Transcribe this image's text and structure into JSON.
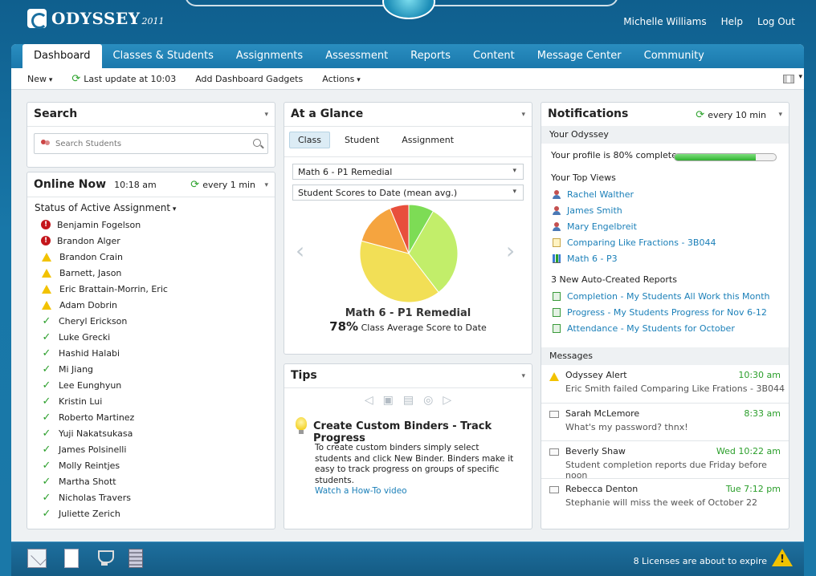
{
  "app": {
    "logo": "ODYSSEY",
    "year": "2011"
  },
  "top_links": {
    "user": "Michelle Williams",
    "help": "Help",
    "logout": "Log Out"
  },
  "tabs": [
    "Dashboard",
    "Classes & Students",
    "Assignments",
    "Assessment",
    "Reports",
    "Content",
    "Message Center",
    "Community"
  ],
  "toolbar": {
    "new": "New",
    "last_update": "Last update at 10:03",
    "add_gadgets": "Add Dashboard Gadgets",
    "actions": "Actions"
  },
  "search": {
    "title": "Search",
    "placeholder": "Search Students"
  },
  "online": {
    "title": "Online Now",
    "time": "10:18 am",
    "refresh": "every 1 min",
    "status_title": "Status of Active Assignment",
    "students": [
      {
        "name": "Benjamin Fogelson",
        "status": "error"
      },
      {
        "name": "Brandon Alger",
        "status": "error"
      },
      {
        "name": "Brandon Crain",
        "status": "warning"
      },
      {
        "name": "Barnett, Jason",
        "status": "warning"
      },
      {
        "name": "Eric Brattain-Morrin, Eric",
        "status": "warning"
      },
      {
        "name": "Adam Dobrin",
        "status": "warning"
      },
      {
        "name": "Cheryl Erickson",
        "status": "ok"
      },
      {
        "name": "Luke Grecki",
        "status": "ok"
      },
      {
        "name": "Hashid Halabi",
        "status": "ok"
      },
      {
        "name": "Mi Jiang",
        "status": "ok"
      },
      {
        "name": "Lee Eunghyun",
        "status": "ok"
      },
      {
        "name": "Kristin Lui",
        "status": "ok"
      },
      {
        "name": "Roberto Martinez",
        "status": "ok"
      },
      {
        "name": "Yuji Nakatsukasa",
        "status": "ok"
      },
      {
        "name": "James Polsinelli",
        "status": "ok"
      },
      {
        "name": "Molly Reintjes",
        "status": "ok"
      },
      {
        "name": "Martha Shott",
        "status": "ok"
      },
      {
        "name": "Nicholas Travers",
        "status": "ok"
      },
      {
        "name": "Juliette Zerich",
        "status": "ok"
      }
    ]
  },
  "glance": {
    "title": "At a Glance",
    "subtabs": [
      "Class",
      "Student",
      "Assignment"
    ],
    "class_select": "Math 6 - P1 Remedial",
    "metric_select": "Student Scores to Date (mean avg.)",
    "caption": "Math 6 - P1 Remedial",
    "avg_value": "78%",
    "avg_label": "Class Average Score to Date",
    "colors": [
      "#7ddc55",
      "#c2ee6a",
      "#f2df56",
      "#f5a43f",
      "#e84f3c"
    ]
  },
  "chart_data": {
    "type": "pie",
    "values": [
      8,
      30,
      38,
      14,
      6
    ],
    "colors": [
      "#7ddc55",
      "#c2ee6a",
      "#f2df56",
      "#f5a43f",
      "#e84f3c"
    ]
  },
  "tips": {
    "title": "Tips",
    "tip_title": "Create Custom Binders - Track Progress",
    "tip_body": "To create custom binders simply select students and click New Binder. Binders make it easy to track progress on groups of specific students.",
    "tip_link": "Watch a How-To video"
  },
  "notifications": {
    "title": "Notifications",
    "refresh": "every 10 min",
    "your_odyssey": "Your Odyssey",
    "profile_text": "Your profile is 80% complete",
    "profile_progress": 0.8,
    "top_views_label": "Your Top Views",
    "top_views": [
      {
        "label": "Rachel Walther",
        "icon": "person-icon"
      },
      {
        "label": "James Smith",
        "icon": "person-icon"
      },
      {
        "label": "Mary Engelbreit",
        "icon": "person-icon"
      },
      {
        "label": "Comparing Like Fractions - 3B044",
        "icon": "doc-icon"
      },
      {
        "label": "Math 6 - P3",
        "icon": "barchart-icon"
      }
    ],
    "reports_label": "3 New Auto-Created Reports",
    "reports": [
      "Completion - My Students All Work this Month",
      "Progress - My Students Progress for Nov 6-12",
      "Attendance - My Students for October"
    ],
    "messages_label": "Messages",
    "messages": [
      {
        "from": "Odyssey Alert",
        "time": "10:30 am",
        "text": "Eric Smith failed Comparing Like Frations - 3B044",
        "icon": "warning"
      },
      {
        "from": "Sarah McLemore",
        "time": "8:33 am",
        "text": "What's my password? thnx!",
        "icon": "mail"
      },
      {
        "from": "Beverly Shaw",
        "time": "Wed 10:22 am",
        "text": "Student completion reports due Friday before noon",
        "icon": "mail"
      },
      {
        "from": "Rebecca Denton",
        "time": "Tue 7:12 pm",
        "text": "Stephanie will miss the week of October 22",
        "icon": "mail"
      }
    ]
  },
  "footer": {
    "license_text": "8 Licenses are about to expire"
  }
}
